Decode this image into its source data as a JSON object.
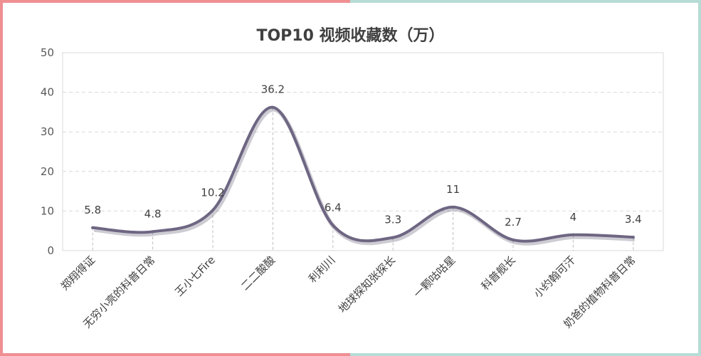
{
  "chart_data": {
    "type": "line",
    "title": "TOP10 视频收藏数（万）",
    "categories": [
      "郑翔得证",
      "无穷小亮的科普日常",
      "王小七Fire",
      "二二酸酸",
      "利利川",
      "地球探知张探长",
      "一颗咕咕星",
      "科普舰长",
      "小约翰可汗",
      "奶爸的植物科普日常"
    ],
    "series": [
      {
        "values": [
          5.8,
          4.8,
          10.2,
          36.2,
          6.4,
          3.3,
          11,
          2.7,
          4,
          3.4
        ]
      }
    ],
    "data_labels": [
      "5.8",
      "4.8",
      "10.2",
      "36.2",
      "6.4",
      "3.3",
      "11",
      "2.7",
      "4",
      "3.4"
    ],
    "ylim": [
      0,
      50
    ],
    "yticks": [
      0,
      10,
      20,
      30,
      40,
      50
    ],
    "grid": true,
    "smooth": true,
    "line_color": "#6e6682",
    "grid_color": "#d9d9d9"
  }
}
